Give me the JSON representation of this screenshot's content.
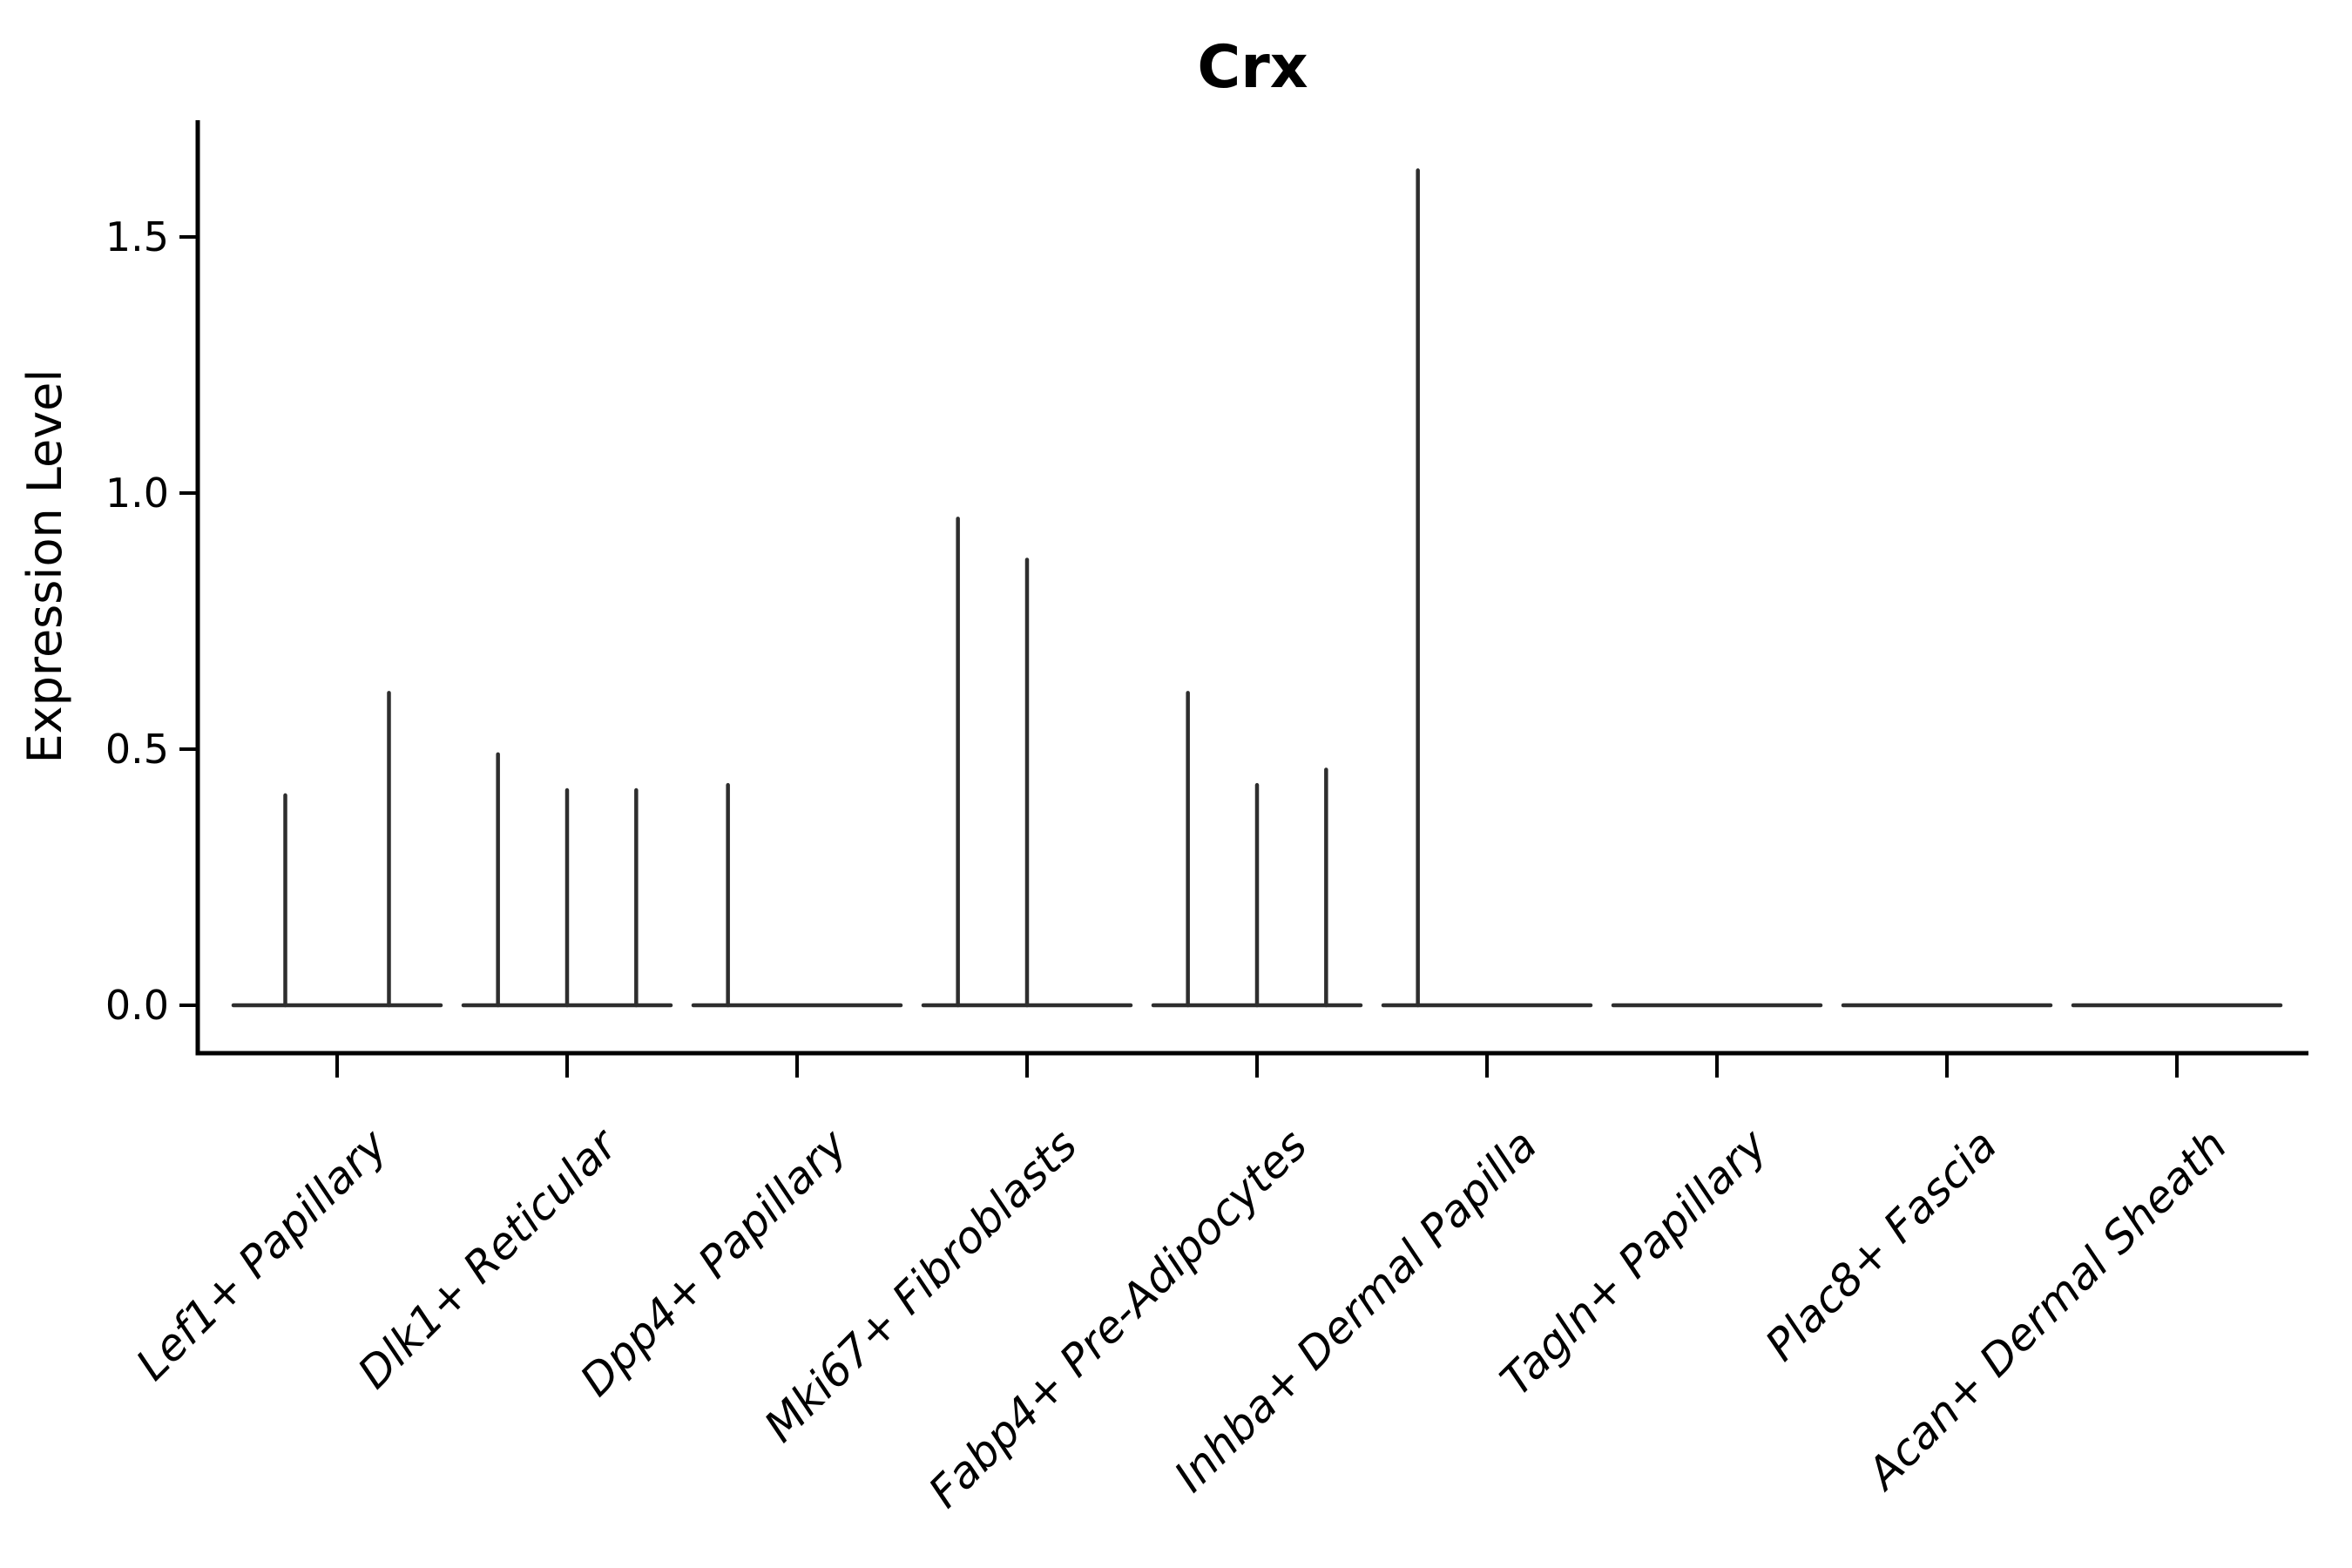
{
  "chart_data": {
    "type": "violin",
    "title": "Crx",
    "ylabel": "Expression Level",
    "xlabel": "",
    "yticks": [
      "0.0",
      "0.5",
      "1.0",
      "1.5"
    ],
    "ytick_values": [
      0.0,
      0.5,
      1.0,
      1.5
    ],
    "ylim": [
      -0.09,
      1.72
    ],
    "grid": false,
    "legend": "none",
    "categories": [
      "Lef1+ Papillary",
      "Dlk1+ Reticular",
      "Dpp4+ Papillary",
      "Mki67+ Fibroblasts",
      "Fabp4+ Pre-Adipocytes",
      "Inhba+ Dermal Papilla",
      "Tagln+ Papillary",
      "Plac8+ Fascia",
      "Acan+ Dermal Sheath"
    ],
    "groups": [
      {
        "label": "Lef1+ Papillary",
        "n_violins": 2,
        "baseline_value": 0,
        "spikes": [
          {
            "slot": 0,
            "value": 0.41
          },
          {
            "slot": 1,
            "value": 0.61
          }
        ]
      },
      {
        "label": "Dlk1+ Reticular",
        "n_violins": 3,
        "baseline_value": 0,
        "spikes": [
          {
            "slot": 0,
            "value": 0.49
          },
          {
            "slot": 1,
            "value": 0.42
          },
          {
            "slot": 2,
            "value": 0.42
          }
        ]
      },
      {
        "label": "Dpp4+ Papillary",
        "n_violins": 3,
        "baseline_value": 0,
        "spikes": [
          {
            "slot": 0,
            "value": 0.43
          }
        ]
      },
      {
        "label": "Mki67+ Fibroblasts",
        "n_violins": 3,
        "baseline_value": 0,
        "spikes": [
          {
            "slot": 0,
            "value": 0.95
          },
          {
            "slot": 1,
            "value": 0.87
          }
        ]
      },
      {
        "label": "Fabp4+ Pre-Adipocytes",
        "n_violins": 3,
        "baseline_value": 0,
        "spikes": [
          {
            "slot": 0,
            "value": 0.61
          },
          {
            "slot": 1,
            "value": 0.43
          },
          {
            "slot": 2,
            "value": 0.46
          }
        ]
      },
      {
        "label": "Inhba+ Dermal Papilla",
        "n_violins": 3,
        "baseline_value": 0,
        "spikes": [
          {
            "slot": 0,
            "value": 1.63
          }
        ]
      },
      {
        "label": "Tagln+ Papillary",
        "n_violins": 3,
        "baseline_value": 0,
        "spikes": []
      },
      {
        "label": "Plac8+ Fascia",
        "n_violins": 3,
        "baseline_value": 0,
        "spikes": []
      },
      {
        "label": "Acan+ Dermal Sheath",
        "n_violins": 3,
        "baseline_value": 0,
        "spikes": []
      }
    ],
    "colors": {
      "violin": "#2e2e2e",
      "axis": "#000000",
      "text": "#000000",
      "background": "#ffffff"
    }
  }
}
